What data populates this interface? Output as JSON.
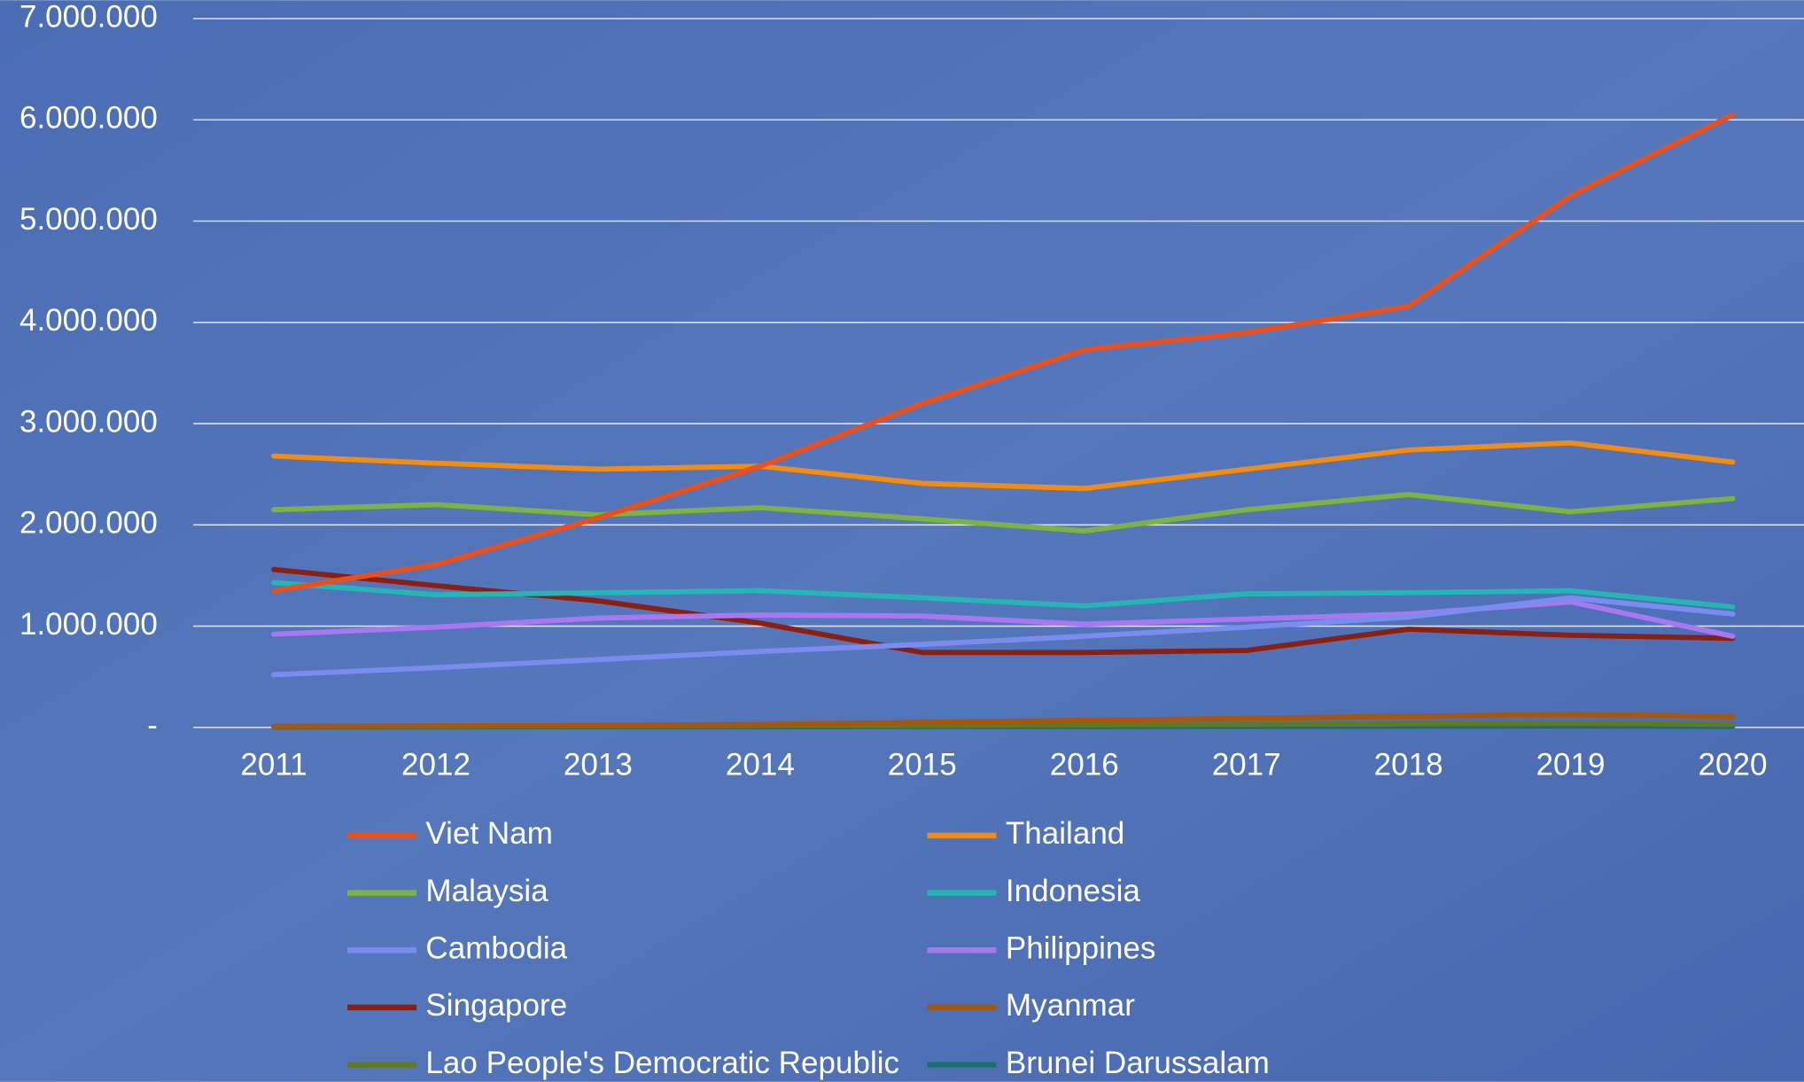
{
  "chart_data": {
    "type": "line",
    "x": [
      2011,
      2012,
      2013,
      2014,
      2015,
      2016,
      2017,
      2018,
      2019,
      2020
    ],
    "ylim": [
      0,
      7000000
    ],
    "yticks": [
      {
        "value": 0,
        "label": "-"
      },
      {
        "value": 1000000,
        "label": "1.000.000"
      },
      {
        "value": 2000000,
        "label": "2.000.000"
      },
      {
        "value": 3000000,
        "label": "3.000.000"
      },
      {
        "value": 4000000,
        "label": "4.000.000"
      },
      {
        "value": 5000000,
        "label": "5.000.000"
      },
      {
        "value": 6000000,
        "label": "6.000.000"
      },
      {
        "value": 7000000,
        "label": "7.000.000"
      }
    ],
    "grid": true,
    "legend": "bottom",
    "series": [
      {
        "name": "Viet Nam",
        "color": "#e8501e",
        "values": [
          1350000,
          1610000,
          2070000,
          2580000,
          3200000,
          3730000,
          3900000,
          4160000,
          5250000,
          6050000
        ]
      },
      {
        "name": "Thailand",
        "color": "#f28c12",
        "values": [
          2680000,
          2610000,
          2550000,
          2580000,
          2410000,
          2360000,
          2550000,
          2740000,
          2810000,
          2620000
        ]
      },
      {
        "name": "Malaysia",
        "color": "#7cb342",
        "values": [
          2150000,
          2200000,
          2100000,
          2170000,
          2060000,
          1940000,
          2150000,
          2300000,
          2130000,
          2260000
        ]
      },
      {
        "name": "Indonesia",
        "color": "#26b5b5",
        "values": [
          1430000,
          1310000,
          1330000,
          1350000,
          1280000,
          1200000,
          1320000,
          1330000,
          1350000,
          1190000
        ]
      },
      {
        "name": "Cambodia",
        "color": "#7b8cf0",
        "values": [
          520000,
          590000,
          670000,
          750000,
          820000,
          900000,
          990000,
          1090000,
          1280000,
          1120000
        ]
      },
      {
        "name": "Philippines",
        "color": "#a878f0",
        "values": [
          920000,
          990000,
          1080000,
          1110000,
          1100000,
          1020000,
          1070000,
          1120000,
          1240000,
          900000
        ]
      },
      {
        "name": "Singapore",
        "color": "#8b2010",
        "values": [
          1560000,
          1400000,
          1250000,
          1030000,
          740000,
          740000,
          760000,
          970000,
          910000,
          880000
        ]
      },
      {
        "name": "Myanmar",
        "color": "#a8560e",
        "values": [
          10000,
          15000,
          20000,
          30000,
          50000,
          70000,
          90000,
          110000,
          130000,
          110000
        ]
      },
      {
        "name": "Lao People's Democratic Republic",
        "color": "#5f7a22",
        "values": [
          10000,
          12000,
          15000,
          18000,
          20000,
          25000,
          30000,
          35000,
          40000,
          30000
        ]
      },
      {
        "name": "Brunei Darussalam",
        "color": "#1a6e70",
        "values": [
          5000,
          6000,
          7000,
          8000,
          9000,
          10000,
          11000,
          12000,
          13000,
          10000
        ]
      }
    ]
  }
}
